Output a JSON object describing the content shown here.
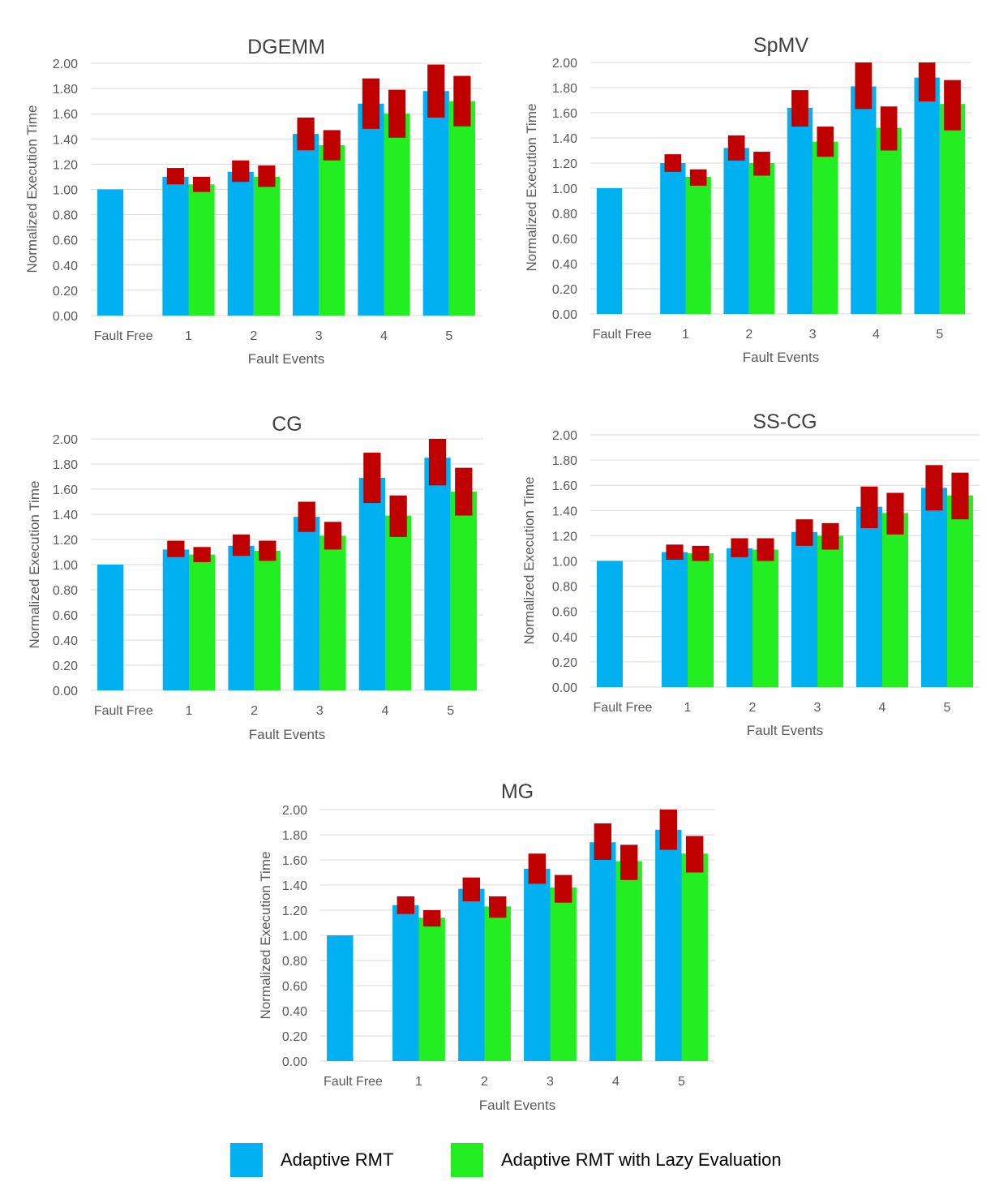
{
  "colors": {
    "adaptive": "#00B0F0",
    "lazy": "#22EE22",
    "overhead": "#C00000",
    "grid": "#D9D9D9",
    "text": "#595959"
  },
  "legend": {
    "adaptive": "Adaptive RMT",
    "lazy": "Adaptive RMT with Lazy Evaluation"
  },
  "chart_data": [
    {
      "type": "bar",
      "title": "DGEMM",
      "xlabel": "Fault Events",
      "ylabel": "Normalized Execution Time",
      "ylim": [
        0,
        2
      ],
      "yticks": [
        "0.00",
        "0.20",
        "0.40",
        "0.60",
        "0.80",
        "1.00",
        "1.20",
        "1.40",
        "1.60",
        "1.80",
        "2.00"
      ],
      "categories": [
        "Fault Free",
        "1",
        "2",
        "3",
        "4",
        "5"
      ],
      "grid": true,
      "series": [
        {
          "name": "Adaptive RMT",
          "values": [
            1.0,
            1.1,
            1.14,
            1.44,
            1.68,
            1.78
          ],
          "range_low": [
            null,
            1.04,
            1.06,
            1.31,
            1.48,
            1.57
          ],
          "range_high": [
            null,
            1.17,
            1.23,
            1.57,
            1.88,
            1.99
          ]
        },
        {
          "name": "Adaptive RMT with Lazy Evaluation",
          "values": [
            null,
            1.04,
            1.1,
            1.35,
            1.6,
            1.7
          ],
          "range_low": [
            null,
            0.98,
            1.02,
            1.23,
            1.41,
            1.5
          ],
          "range_high": [
            null,
            1.1,
            1.19,
            1.47,
            1.79,
            1.9
          ]
        }
      ]
    },
    {
      "type": "bar",
      "title": "SpMV",
      "xlabel": "Fault Events",
      "ylabel": "Normalized Execution Time",
      "ylim": [
        0,
        2
      ],
      "yticks": [
        "0.00",
        "0.20",
        "0.40",
        "0.60",
        "0.80",
        "1.00",
        "1.20",
        "1.40",
        "1.60",
        "1.80",
        "2.00"
      ],
      "categories": [
        "Fault Free",
        "1",
        "2",
        "3",
        "4",
        "5"
      ],
      "grid": true,
      "series": [
        {
          "name": "Adaptive RMT",
          "values": [
            1.0,
            1.2,
            1.32,
            1.64,
            1.81,
            1.88
          ],
          "range_low": [
            null,
            1.13,
            1.22,
            1.49,
            1.63,
            1.69
          ],
          "range_high": [
            null,
            1.27,
            1.42,
            1.78,
            2.0,
            2.0
          ]
        },
        {
          "name": "Adaptive RMT with Lazy Evaluation",
          "values": [
            null,
            1.09,
            1.2,
            1.37,
            1.48,
            1.67
          ],
          "range_low": [
            null,
            1.02,
            1.1,
            1.25,
            1.3,
            1.46
          ],
          "range_high": [
            null,
            1.15,
            1.29,
            1.49,
            1.65,
            1.86
          ]
        }
      ]
    },
    {
      "type": "bar",
      "title": "CG",
      "xlabel": "Fault Events",
      "ylabel": "Normalized Execution Time",
      "ylim": [
        0,
        2
      ],
      "yticks": [
        "0.00",
        "0.20",
        "0.40",
        "0.60",
        "0.80",
        "1.00",
        "1.20",
        "1.40",
        "1.60",
        "1.80",
        "2.00"
      ],
      "categories": [
        "Fault Free",
        "1",
        "2",
        "3",
        "4",
        "5"
      ],
      "grid": true,
      "series": [
        {
          "name": "Adaptive RMT",
          "values": [
            1.0,
            1.12,
            1.15,
            1.38,
            1.69,
            1.85
          ],
          "range_low": [
            null,
            1.06,
            1.07,
            1.26,
            1.49,
            1.63
          ],
          "range_high": [
            null,
            1.19,
            1.24,
            1.5,
            1.89,
            2.0
          ]
        },
        {
          "name": "Adaptive RMT with Lazy Evaluation",
          "values": [
            null,
            1.08,
            1.11,
            1.23,
            1.39,
            1.58
          ],
          "range_low": [
            null,
            1.02,
            1.03,
            1.12,
            1.22,
            1.39
          ],
          "range_high": [
            null,
            1.14,
            1.19,
            1.34,
            1.55,
            1.77
          ]
        }
      ]
    },
    {
      "type": "bar",
      "title": "SS-CG",
      "xlabel": "Fault Events",
      "ylabel": "Normalized Execution Time",
      "ylim": [
        0,
        2
      ],
      "yticks": [
        "0.00",
        "0.20",
        "0.40",
        "0.60",
        "0.80",
        "1.00",
        "1.20",
        "1.40",
        "1.60",
        "1.80",
        "2.00"
      ],
      "categories": [
        "Fault Free",
        "1",
        "2",
        "3",
        "4",
        "5"
      ],
      "grid": true,
      "series": [
        {
          "name": "Adaptive RMT",
          "values": [
            1.0,
            1.07,
            1.1,
            1.23,
            1.43,
            1.58
          ],
          "range_low": [
            null,
            1.01,
            1.03,
            1.12,
            1.26,
            1.4
          ],
          "range_high": [
            null,
            1.13,
            1.18,
            1.33,
            1.59,
            1.76
          ]
        },
        {
          "name": "Adaptive RMT with Lazy Evaluation",
          "values": [
            null,
            1.06,
            1.09,
            1.2,
            1.38,
            1.52
          ],
          "range_low": [
            null,
            1.0,
            1.0,
            1.09,
            1.21,
            1.33
          ],
          "range_high": [
            null,
            1.12,
            1.18,
            1.3,
            1.54,
            1.7
          ]
        }
      ]
    },
    {
      "type": "bar",
      "title": "MG",
      "xlabel": "Fault Events",
      "ylabel": "Normalized Execution Time",
      "ylim": [
        0,
        2
      ],
      "yticks": [
        "0.00",
        "0.20",
        "0.40",
        "0.60",
        "0.80",
        "1.00",
        "1.20",
        "1.40",
        "1.60",
        "1.80",
        "2.00"
      ],
      "categories": [
        "Fault Free",
        "1",
        "2",
        "3",
        "4",
        "5"
      ],
      "grid": true,
      "series": [
        {
          "name": "Adaptive RMT",
          "values": [
            1.0,
            1.24,
            1.37,
            1.53,
            1.74,
            1.84
          ],
          "range_low": [
            null,
            1.17,
            1.27,
            1.41,
            1.6,
            1.68
          ],
          "range_high": [
            null,
            1.31,
            1.46,
            1.65,
            1.89,
            2.0
          ]
        },
        {
          "name": "Adaptive RMT with Lazy Evaluation",
          "values": [
            null,
            1.14,
            1.23,
            1.38,
            1.59,
            1.65
          ],
          "range_low": [
            null,
            1.07,
            1.14,
            1.26,
            1.44,
            1.5
          ],
          "range_high": [
            null,
            1.2,
            1.31,
            1.48,
            1.72,
            1.79
          ]
        }
      ]
    }
  ]
}
